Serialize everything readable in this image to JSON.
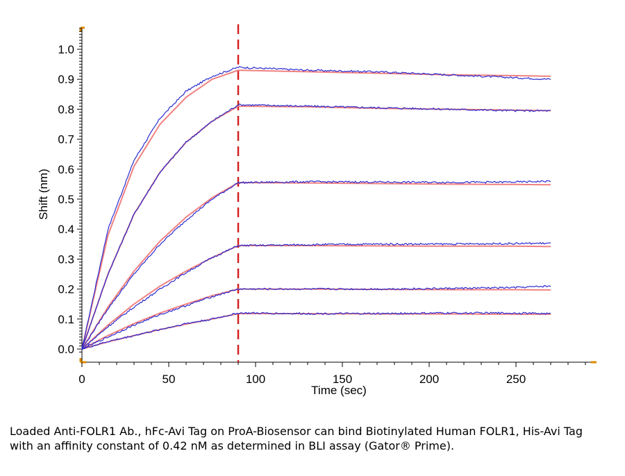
{
  "chart_data": {
    "type": "line",
    "title": "",
    "xlabel": "Time (sec)",
    "ylabel": "Shift (nm)",
    "xlim": [
      0,
      295
    ],
    "ylim": [
      -0.01,
      1.07
    ],
    "x_ticks": [
      0,
      50,
      100,
      150,
      200,
      250
    ],
    "y_ticks": [
      0.0,
      0.1,
      0.2,
      0.3,
      0.4,
      0.5,
      0.6,
      0.7,
      0.8,
      0.9,
      1.0
    ],
    "x_tick_labels": [
      "0",
      "50",
      "100",
      "150",
      "200",
      "250"
    ],
    "y_tick_labels": [
      "0.0",
      "0.1",
      "0.2",
      "0.3",
      "0.4",
      "0.5",
      "0.6",
      "0.7",
      "0.8",
      "0.9",
      "1.0"
    ],
    "grid": false,
    "association_end_x": 90,
    "x_end": 270,
    "colors": {
      "measured": "#2a2ad0",
      "fit": "#f08080",
      "marker": "#d42020",
      "frame": "#e08a00"
    },
    "series": [
      {
        "x": [
          0,
          15,
          30,
          45,
          60,
          75,
          90,
          130,
          170,
          210,
          250,
          270
        ],
        "measured": [
          0,
          0.4,
          0.63,
          0.77,
          0.86,
          0.91,
          0.94,
          0.93,
          0.925,
          0.915,
          0.905,
          0.9
        ],
        "fit": [
          0,
          0.38,
          0.61,
          0.75,
          0.84,
          0.9,
          0.93,
          0.925,
          0.92,
          0.915,
          0.912,
          0.91
        ]
      },
      {
        "x": [
          0,
          15,
          30,
          45,
          60,
          75,
          90,
          130,
          170,
          210,
          250,
          270
        ],
        "measured": [
          0,
          0.25,
          0.45,
          0.59,
          0.69,
          0.76,
          0.815,
          0.81,
          0.805,
          0.8,
          0.795,
          0.795
        ],
        "fit": [
          0,
          0.25,
          0.45,
          0.59,
          0.69,
          0.76,
          0.81,
          0.808,
          0.803,
          0.8,
          0.797,
          0.795
        ]
      },
      {
        "x": [
          0,
          15,
          30,
          45,
          60,
          75,
          90,
          130,
          170,
          210,
          250,
          270
        ],
        "measured": [
          0,
          0.135,
          0.25,
          0.35,
          0.43,
          0.5,
          0.555,
          0.558,
          0.557,
          0.556,
          0.557,
          0.56
        ],
        "fit": [
          0,
          0.14,
          0.26,
          0.36,
          0.44,
          0.505,
          0.555,
          0.554,
          0.552,
          0.55,
          0.549,
          0.548
        ]
      },
      {
        "x": [
          0,
          15,
          30,
          45,
          60,
          75,
          90,
          130,
          170,
          210,
          250,
          270
        ],
        "measured": [
          0,
          0.075,
          0.14,
          0.2,
          0.255,
          0.305,
          0.345,
          0.348,
          0.35,
          0.35,
          0.352,
          0.353
        ],
        "fit": [
          0,
          0.08,
          0.15,
          0.21,
          0.26,
          0.305,
          0.345,
          0.345,
          0.344,
          0.343,
          0.343,
          0.342
        ]
      },
      {
        "x": [
          0,
          15,
          30,
          45,
          60,
          75,
          90,
          130,
          170,
          210,
          250,
          270
        ],
        "measured": [
          0,
          0.04,
          0.08,
          0.115,
          0.145,
          0.175,
          0.2,
          0.2,
          0.2,
          0.202,
          0.205,
          0.21
        ],
        "fit": [
          0,
          0.045,
          0.085,
          0.12,
          0.15,
          0.178,
          0.2,
          0.2,
          0.199,
          0.198,
          0.198,
          0.197
        ]
      },
      {
        "x": [
          0,
          15,
          30,
          45,
          60,
          75,
          90,
          130,
          170,
          210,
          250,
          270
        ],
        "measured": [
          0,
          0.025,
          0.045,
          0.065,
          0.085,
          0.1,
          0.12,
          0.118,
          0.118,
          0.12,
          0.12,
          0.118
        ],
        "fit": [
          0,
          0.024,
          0.045,
          0.065,
          0.083,
          0.1,
          0.118,
          0.118,
          0.117,
          0.117,
          0.116,
          0.116
        ]
      }
    ]
  },
  "caption": "Loaded Anti-FOLR1 Ab., hFc-Avi Tag on ProA-Biosensor can bind Biotinylated Human FOLR1, His-Avi Tag with an affinity constant of 0.42 nM as determined in BLI assay (Gator® Prime)."
}
